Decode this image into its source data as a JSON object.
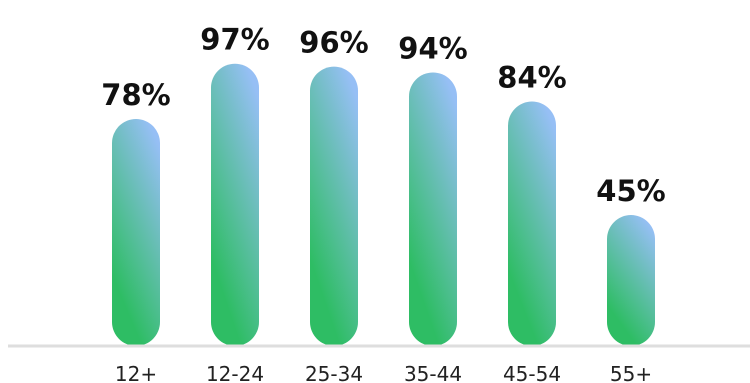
{
  "chart_data": {
    "type": "bar",
    "categories": [
      "12+",
      "12-24",
      "25-34",
      "35-44",
      "45-54",
      "55+"
    ],
    "values": [
      78,
      97,
      96,
      94,
      84,
      45
    ],
    "value_labels": [
      "78%",
      "97%",
      "96%",
      "94%",
      "84%",
      "45%"
    ],
    "title": "",
    "xlabel": "",
    "ylabel": "",
    "ylim": [
      0,
      100
    ],
    "grid": false,
    "legend": "none",
    "colors": {
      "bar_gradient_top": "#96bff5",
      "bar_gradient_bottom": "#2ebd64",
      "baseline": "#dedede",
      "text": "#111111"
    }
  }
}
